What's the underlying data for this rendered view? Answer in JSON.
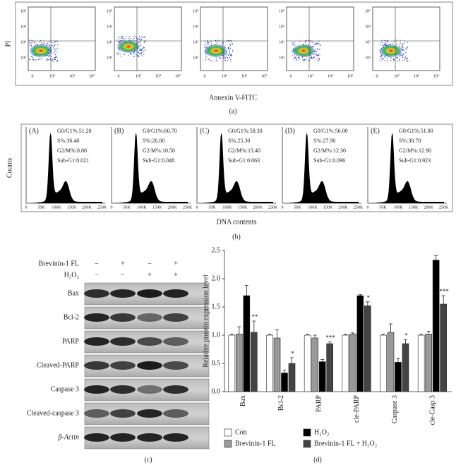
{
  "panel_a": {
    "y_label": "PI",
    "x_label": "Annexin V-FITC",
    "caption": "(a)",
    "yticks": [
      "10⁵",
      "10⁴",
      "10³",
      "10²"
    ],
    "xticks": [
      "0",
      "10³",
      "10⁴",
      "10⁵"
    ]
  },
  "panel_b": {
    "y_label": "Counts",
    "x_label": "DNA contents",
    "caption": "(b)",
    "xticks": [
      "0",
      "50K",
      "100K",
      "150K",
      "200K",
      "250K"
    ],
    "plots": [
      {
        "label": "(A)",
        "stats": [
          "G0/G1%:51.20",
          "S%:36.40",
          "G2/M%:8.80",
          "Sub-G1:0.021"
        ]
      },
      {
        "label": "(B)",
        "stats": [
          "G0/G1%:60.70",
          "S%:26.00",
          "G2/M%:10.50",
          "Sub-G1:0.048"
        ]
      },
      {
        "label": "(C)",
        "stats": [
          "G0/G1%:58.30",
          "S%:25.30",
          "G2/M%:13.40",
          "Sub-G1:0.063"
        ]
      },
      {
        "label": "(D)",
        "stats": [
          "G0/G1%:56.00",
          "S%:27.90",
          "G2/M%:12.30",
          "Sub-G1:0.096"
        ]
      },
      {
        "label": "(E)",
        "stats": [
          "G0/G1%:51.00",
          "S%:30.70",
          "G2/M%:12.90",
          "Sub-G1:0.923"
        ]
      }
    ]
  },
  "panel_c": {
    "caption": "(c)",
    "treatments": [
      {
        "name": "Brevinin-1 FL",
        "signs": [
          "−",
          "+",
          "−",
          "+"
        ]
      },
      {
        "name": "H₂O₂",
        "signs": [
          "−",
          "−",
          "+",
          "+"
        ]
      }
    ],
    "proteins": [
      "Bax",
      "Bcl-2",
      "PARP",
      "Cleaved-PARP",
      "Caspase 3",
      "Cleaved-caspase 3",
      "β-Actin"
    ]
  },
  "chart_data": {
    "type": "bar",
    "caption": "(d)",
    "y_label": "Relative protein expression level",
    "categories": [
      "Bax",
      "Bcl-2",
      "PARP",
      "cle-PARP",
      "Caspase 3",
      "cle-Casp 3"
    ],
    "series": [
      {
        "name": "Con",
        "color": "#ffffff",
        "values": [
          1,
          1,
          1,
          1,
          1,
          1
        ],
        "errors": [
          0.02,
          0.02,
          0.02,
          0.02,
          0.02,
          0.02
        ]
      },
      {
        "name": "Brevinin-1 FL",
        "color": "#999999",
        "values": [
          1.02,
          0.95,
          0.95,
          1.02,
          1.05,
          1.02
        ],
        "errors": [
          0.13,
          0.15,
          0.05,
          0.02,
          0.15,
          0.05
        ]
      },
      {
        "name": "H₂O₂",
        "color": "#000000",
        "values": [
          1.7,
          0.33,
          0.53,
          1.7,
          0.52,
          2.33
        ],
        "errors": [
          0.18,
          0.05,
          0.04,
          0.02,
          0.07,
          0.08
        ]
      },
      {
        "name": "Brevinin-1 FL + H₂O₂",
        "color": "#444444",
        "values": [
          1.05,
          0.5,
          0.85,
          1.52,
          0.85,
          1.55
        ],
        "errors": [
          0.2,
          0.1,
          0.03,
          0.07,
          0.07,
          0.15
        ],
        "annotations": [
          "**",
          "*",
          "***",
          "*",
          "*",
          "***"
        ]
      }
    ],
    "ylim": [
      0,
      2.5
    ],
    "yticks": [
      {
        "value": 0,
        "label": "0.0"
      },
      {
        "value": 0.5,
        "label": "0.5"
      },
      {
        "value": 1,
        "label": "1.0"
      },
      {
        "value": 1.5,
        "label": "1.5"
      },
      {
        "value": 2,
        "label": "2.0"
      },
      {
        "value": 2.5,
        "label": "2.5"
      }
    ]
  }
}
